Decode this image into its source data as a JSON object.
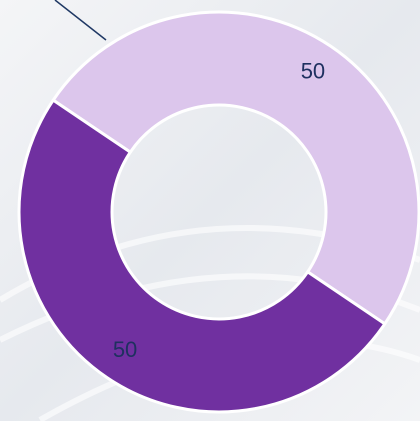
{
  "chart_data": {
    "type": "donut",
    "values": [
      50,
      50
    ],
    "colors": [
      "#dcc6ec",
      "#7030a0"
    ]
  }
}
